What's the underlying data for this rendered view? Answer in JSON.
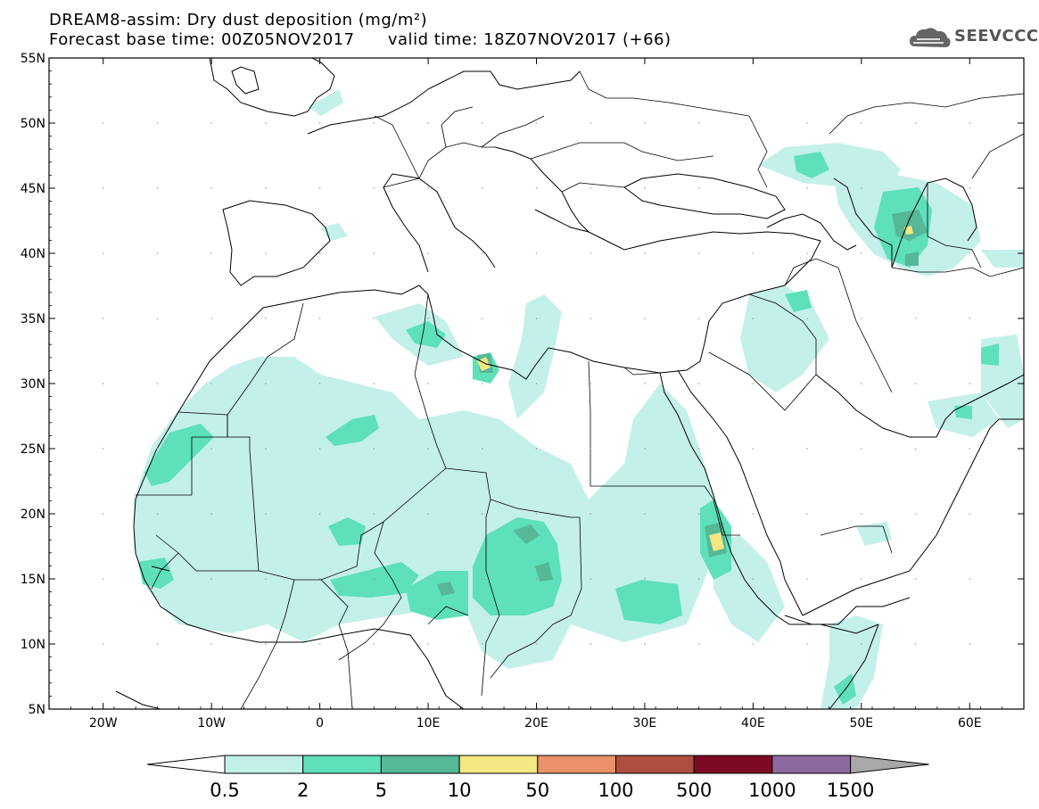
{
  "header": {
    "title_line1": "DREAM8-assim: Dry dust deposition (mg/m²)",
    "title_line2": "Forecast base time: 00Z05NOV2017      valid time: 18Z07NOV2017 (+66)"
  },
  "logo": {
    "text": "SEEVCCC",
    "icon": "cloud-logo-icon"
  },
  "map": {
    "lat_labels": [
      "55N",
      "50N",
      "45N",
      "40N",
      "35N",
      "30N",
      "25N",
      "20N",
      "15N",
      "10N",
      "5N"
    ],
    "lon_labels": [
      "20W",
      "10W",
      "0",
      "10E",
      "20E",
      "30E",
      "40E",
      "50E",
      "60E"
    ],
    "extent": {
      "lon": [
        -25,
        65
      ],
      "lat": [
        5,
        55
      ]
    }
  },
  "legend": {
    "labels": [
      "0.5",
      "2",
      "5",
      "10",
      "50",
      "100",
      "500",
      "1000",
      "1500"
    ],
    "colors": [
      "#c4f0ea",
      "#5ee0ba",
      "#56b896",
      "#f3e882",
      "#e9926a",
      "#ad4f3e",
      "#7d0a24",
      "#8c6aa0"
    ],
    "under_color": "#ffffff",
    "over_color": "#a8a8a8"
  },
  "colors": {
    "level1": "#c4f0ea",
    "level2": "#5ee0ba",
    "level3": "#56b896",
    "level4": "#f3e882",
    "border": "#000000"
  }
}
